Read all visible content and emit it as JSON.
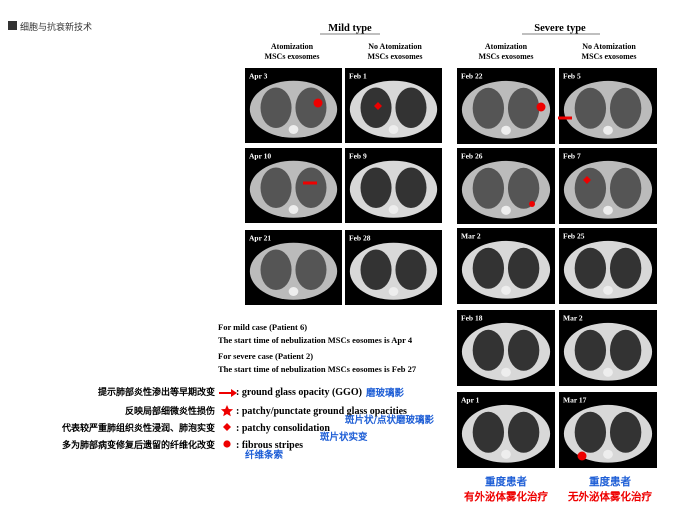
{
  "header": {
    "title": "细胞与抗衰新技术"
  },
  "mild": {
    "title": "Mild type",
    "columns": [
      [
        "Atomization",
        "MSCs exosomes"
      ],
      [
        "No Atomization",
        "MSCs exosomes"
      ]
    ],
    "panels": [
      [
        "Apr 3",
        "Apr 10",
        "Apr 21"
      ],
      [
        "Feb 1",
        "Feb 9",
        "Feb 28"
      ]
    ]
  },
  "severe": {
    "title": "Severe type",
    "columns": [
      [
        "Atomization",
        "MSCs exosomes"
      ],
      [
        "No Atomization",
        "MSCs exosomes"
      ]
    ],
    "panels": [
      [
        "Feb 22",
        "Feb 26",
        "Mar 2",
        "Feb 18",
        "Apr 1"
      ],
      [
        "Feb 5",
        "Feb 7",
        "Feb 25",
        "Mar 2",
        "Mar 17"
      ]
    ]
  },
  "notes": [
    "For mild case (Patient 6)",
    "The start time of nebulization MSCs eosomes is Apr 4",
    "For severe case (Patient 2)",
    "The start time of nebulization MSCs eosomes is Feb 27"
  ],
  "legend": [
    {
      "zh": "提示肺部炎性渗出等早期改变",
      "en": ": ground glass opacity (GGO)",
      "note": "磨玻璃影"
    },
    {
      "zh": "反映局部细微炎性损伤",
      "en": ": patchy/punctate ground glass opacities",
      "note": "斑片状/点状磨玻璃影"
    },
    {
      "zh": "代表较严重肺组织炎性浸润、肺泡实变",
      "en": ": patchy consolidation",
      "note": "斑片状实变"
    },
    {
      "zh": "多为肺部病变修复后遗留的纤维化改变",
      "en": ": fibrous stripes",
      "note": "纤维条索"
    }
  ],
  "captions": [
    {
      "group": "重度患者",
      "therapy": "有外泌体雾化治疗"
    },
    {
      "group": "重度患者",
      "therapy": "无外泌体雾化治疗"
    }
  ]
}
